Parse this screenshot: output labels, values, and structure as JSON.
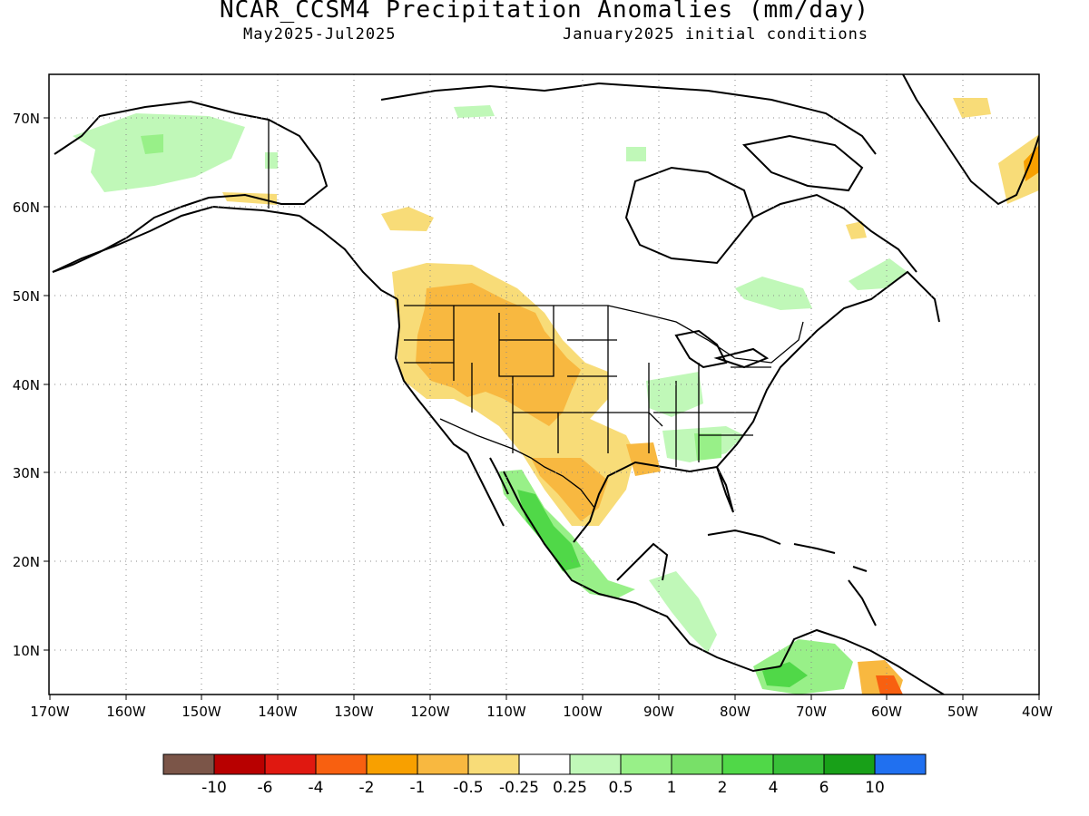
{
  "title": "NCAR_CCSM4 Precipitation Anomalies (mm/day)",
  "period": "May2025-Jul2025",
  "init": "January2025 initial conditions",
  "lat_labels": [
    "70N",
    "60N",
    "50N",
    "40N",
    "30N",
    "20N",
    "10N"
  ],
  "lon_labels": [
    "170W",
    "160W",
    "150W",
    "140W",
    "130W",
    "120W",
    "110W",
    "100W",
    "90W",
    "80W",
    "70W",
    "60W",
    "50W",
    "40W"
  ],
  "legend": {
    "colors": [
      "#7b5548",
      "#b80000",
      "#e01810",
      "#f86010",
      "#f8a000",
      "#f8b840",
      "#f8dc78",
      "#ffffff",
      "#c0f8b8",
      "#98f088",
      "#78e068",
      "#50d848",
      "#38c038",
      "#18a018",
      "#2070f0"
    ],
    "labels": [
      "-10",
      "-6",
      "-4",
      "-2",
      "-1",
      "-0.5",
      "-0.25",
      "0.25",
      "0.5",
      "1",
      "2",
      "4",
      "6",
      "10"
    ]
  }
}
